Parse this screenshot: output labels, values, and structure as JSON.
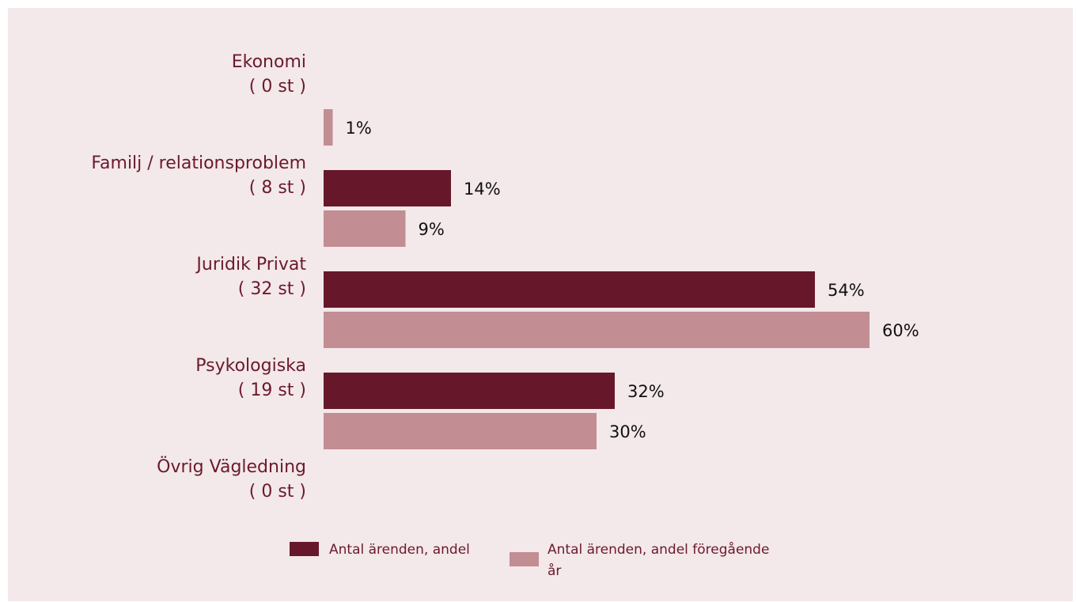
{
  "chart_data": {
    "type": "bar",
    "orientation": "horizontal",
    "categories": [
      {
        "name": "Ekonomi",
        "count": "( 0 st )"
      },
      {
        "name": "Familj / relationsproblem",
        "count": "( 8 st )"
      },
      {
        "name": "Juridik Privat",
        "count": "( 32 st )"
      },
      {
        "name": "Psykologiska",
        "count": "( 19 st )"
      },
      {
        "name": "Övrig Vägledning",
        "count": "( 0 st )"
      }
    ],
    "series": [
      {
        "name": "Antal ärenden, andel",
        "color": "#66182a",
        "values": [
          null,
          14,
          54,
          32,
          null
        ],
        "labels": [
          "",
          "14%",
          "54%",
          "32%",
          ""
        ]
      },
      {
        "name": "Antal ärenden, andel föregående år",
        "color": "#c28d93",
        "values": [
          1,
          9,
          60,
          30,
          null
        ],
        "labels": [
          "1%",
          "9%",
          "60%",
          "30%",
          ""
        ]
      }
    ],
    "xlim": [
      0,
      60
    ],
    "grid": false,
    "legend_position": "bottom"
  },
  "legend": {
    "line1_current": "Antal ärenden, andel",
    "line1_previous": "Antal ärenden, andel föregående",
    "line2_previous": "år"
  }
}
